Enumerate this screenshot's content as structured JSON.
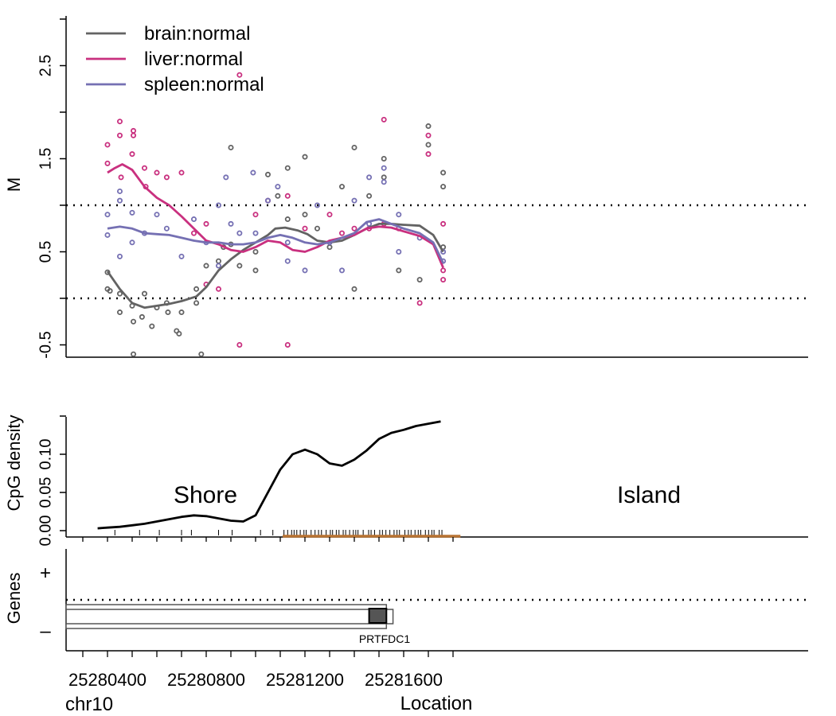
{
  "chart_data": [
    {
      "type": "scatter",
      "panel": "methylation",
      "ylabel": "M",
      "ylim": [
        -0.55,
        3.1
      ],
      "xlim": [
        25280300,
        25281830
      ],
      "yticks": [
        "-0.5",
        "0.5",
        "1.5",
        "2.5"
      ],
      "reference_lines": [
        1.0,
        0.0
      ],
      "legend_position": "top-left",
      "legend": [
        "brain:normal",
        "liver:normal",
        "spleen:normal"
      ],
      "colors": {
        "brain": "#636363",
        "liver": "#c9307f",
        "spleen": "#7570b3"
      },
      "series": [
        {
          "name": "brain:normal",
          "smooth": [
            [
              25280400,
              0.29
            ],
            [
              25280450,
              0.1
            ],
            [
              25280500,
              -0.05
            ],
            [
              25280550,
              -0.1
            ],
            [
              25280600,
              -0.08
            ],
            [
              25280650,
              -0.06
            ],
            [
              25280700,
              -0.03
            ],
            [
              25280760,
              0.02
            ],
            [
              25280800,
              0.12
            ],
            [
              25280850,
              0.3
            ],
            [
              25280900,
              0.42
            ],
            [
              25280950,
              0.52
            ],
            [
              25281000,
              0.6
            ],
            [
              25281050,
              0.68
            ],
            [
              25281080,
              0.75
            ],
            [
              25281120,
              0.76
            ],
            [
              25281170,
              0.73
            ],
            [
              25281210,
              0.69
            ],
            [
              25281250,
              0.62
            ],
            [
              25281300,
              0.6
            ],
            [
              25281350,
              0.62
            ],
            [
              25281400,
              0.68
            ],
            [
              25281450,
              0.75
            ],
            [
              25281500,
              0.8
            ],
            [
              25281550,
              0.8
            ],
            [
              25281600,
              0.79
            ],
            [
              25281665,
              0.78
            ],
            [
              25281720,
              0.68
            ],
            [
              25281760,
              0.5
            ]
          ],
          "points": [
            [
              25280400,
              0.28
            ],
            [
              25280400,
              0.1
            ],
            [
              25280410,
              0.08
            ],
            [
              25280450,
              -0.15
            ],
            [
              25280450,
              0.05
            ],
            [
              25280500,
              -0.08
            ],
            [
              25280505,
              -0.25
            ],
            [
              25280505,
              -0.6
            ],
            [
              25280540,
              -0.2
            ],
            [
              25280550,
              0.05
            ],
            [
              25280580,
              -0.3
            ],
            [
              25280600,
              -0.1
            ],
            [
              25280640,
              -0.05
            ],
            [
              25280645,
              -0.15
            ],
            [
              25280680,
              -0.35
            ],
            [
              25280690,
              -0.38
            ],
            [
              25280700,
              -0.15
            ],
            [
              25280760,
              0.1
            ],
            [
              25280760,
              -0.05
            ],
            [
              25280780,
              -0.6
            ],
            [
              25280800,
              0.35
            ],
            [
              25280850,
              0.4
            ],
            [
              25280870,
              0.55
            ],
            [
              25280900,
              1.62
            ],
            [
              25280900,
              0.58
            ],
            [
              25280935,
              0.35
            ],
            [
              25281000,
              0.5
            ],
            [
              25281000,
              0.3
            ],
            [
              25281050,
              1.33
            ],
            [
              25281090,
              1.1
            ],
            [
              25281130,
              1.4
            ],
            [
              25281130,
              0.85
            ],
            [
              25281200,
              1.52
            ],
            [
              25281200,
              0.9
            ],
            [
              25281250,
              0.75
            ],
            [
              25281300,
              0.55
            ],
            [
              25281350,
              1.2
            ],
            [
              25281400,
              0.1
            ],
            [
              25281400,
              1.62
            ],
            [
              25281460,
              1.1
            ],
            [
              25281520,
              1.5
            ],
            [
              25281520,
              1.3
            ],
            [
              25281580,
              0.3
            ],
            [
              25281665,
              0.2
            ],
            [
              25281700,
              1.85
            ],
            [
              25281700,
              1.65
            ],
            [
              25281760,
              1.35
            ],
            [
              25281760,
              1.2
            ],
            [
              25281760,
              0.55
            ]
          ]
        },
        {
          "name": "liver:normal",
          "smooth": [
            [
              25280400,
              1.35
            ],
            [
              25280430,
              1.4
            ],
            [
              25280460,
              1.44
            ],
            [
              25280500,
              1.38
            ],
            [
              25280550,
              1.2
            ],
            [
              25280600,
              1.08
            ],
            [
              25280650,
              1.0
            ],
            [
              25280700,
              0.88
            ],
            [
              25280750,
              0.75
            ],
            [
              25280800,
              0.62
            ],
            [
              25280850,
              0.58
            ],
            [
              25280900,
              0.52
            ],
            [
              25280950,
              0.5
            ],
            [
              25281000,
              0.55
            ],
            [
              25281050,
              0.62
            ],
            [
              25281100,
              0.6
            ],
            [
              25281150,
              0.52
            ],
            [
              25281200,
              0.5
            ],
            [
              25281250,
              0.55
            ],
            [
              25281300,
              0.62
            ],
            [
              25281350,
              0.65
            ],
            [
              25281400,
              0.68
            ],
            [
              25281450,
              0.75
            ],
            [
              25281500,
              0.77
            ],
            [
              25281550,
              0.76
            ],
            [
              25281600,
              0.72
            ],
            [
              25281665,
              0.67
            ],
            [
              25281720,
              0.58
            ],
            [
              25281760,
              0.33
            ]
          ],
          "points": [
            [
              25280400,
              1.65
            ],
            [
              25280400,
              1.45
            ],
            [
              25280450,
              1.9
            ],
            [
              25280450,
              1.75
            ],
            [
              25280455,
              1.3
            ],
            [
              25280500,
              1.55
            ],
            [
              25280505,
              1.75
            ],
            [
              25280505,
              1.8
            ],
            [
              25280550,
              1.4
            ],
            [
              25280555,
              1.2
            ],
            [
              25280600,
              1.35
            ],
            [
              25280640,
              1.3
            ],
            [
              25280700,
              1.35
            ],
            [
              25280750,
              0.7
            ],
            [
              25280800,
              0.15
            ],
            [
              25280800,
              0.8
            ],
            [
              25280850,
              0.1
            ],
            [
              25280935,
              2.4
            ],
            [
              25280935,
              -0.5
            ],
            [
              25281000,
              0.9
            ],
            [
              25281050,
              1.05
            ],
            [
              25281130,
              1.1
            ],
            [
              25281130,
              -0.5
            ],
            [
              25281200,
              0.75
            ],
            [
              25281300,
              0.9
            ],
            [
              25281350,
              0.7
            ],
            [
              25281400,
              0.75
            ],
            [
              25281460,
              0.75
            ],
            [
              25281520,
              1.92
            ],
            [
              25281520,
              0.8
            ],
            [
              25281580,
              0.75
            ],
            [
              25281665,
              -0.05
            ],
            [
              25281700,
              1.75
            ],
            [
              25281700,
              1.55
            ],
            [
              25281760,
              0.8
            ],
            [
              25281760,
              0.3
            ],
            [
              25281760,
              0.2
            ]
          ]
        },
        {
          "name": "spleen:normal",
          "smooth": [
            [
              25280400,
              0.75
            ],
            [
              25280450,
              0.77
            ],
            [
              25280500,
              0.75
            ],
            [
              25280550,
              0.7
            ],
            [
              25280600,
              0.69
            ],
            [
              25280650,
              0.68
            ],
            [
              25280700,
              0.65
            ],
            [
              25280750,
              0.62
            ],
            [
              25280800,
              0.6
            ],
            [
              25280850,
              0.6
            ],
            [
              25280900,
              0.58
            ],
            [
              25280950,
              0.58
            ],
            [
              25281000,
              0.6
            ],
            [
              25281050,
              0.65
            ],
            [
              25281100,
              0.68
            ],
            [
              25281150,
              0.65
            ],
            [
              25281200,
              0.6
            ],
            [
              25281250,
              0.58
            ],
            [
              25281300,
              0.6
            ],
            [
              25281350,
              0.65
            ],
            [
              25281400,
              0.7
            ],
            [
              25281450,
              0.82
            ],
            [
              25281500,
              0.85
            ],
            [
              25281550,
              0.8
            ],
            [
              25281600,
              0.75
            ],
            [
              25281665,
              0.7
            ],
            [
              25281720,
              0.6
            ],
            [
              25281760,
              0.38
            ]
          ],
          "points": [
            [
              25280400,
              0.9
            ],
            [
              25280400,
              0.68
            ],
            [
              25280450,
              1.15
            ],
            [
              25280450,
              1.05
            ],
            [
              25280450,
              0.45
            ],
            [
              25280500,
              0.92
            ],
            [
              25280500,
              0.6
            ],
            [
              25280550,
              0.7
            ],
            [
              25280600,
              0.9
            ],
            [
              25280640,
              0.75
            ],
            [
              25280700,
              0.45
            ],
            [
              25280750,
              0.85
            ],
            [
              25280800,
              0.6
            ],
            [
              25280850,
              1.0
            ],
            [
              25280850,
              0.35
            ],
            [
              25280880,
              1.3
            ],
            [
              25280900,
              0.8
            ],
            [
              25280935,
              0.7
            ],
            [
              25280990,
              1.35
            ],
            [
              25281000,
              0.7
            ],
            [
              25281050,
              1.05
            ],
            [
              25281090,
              1.2
            ],
            [
              25281130,
              0.4
            ],
            [
              25281130,
              0.6
            ],
            [
              25281200,
              0.3
            ],
            [
              25281250,
              1.0
            ],
            [
              25281300,
              0.6
            ],
            [
              25281350,
              0.3
            ],
            [
              25281400,
              1.05
            ],
            [
              25281460,
              1.3
            ],
            [
              25281460,
              0.8
            ],
            [
              25281520,
              1.25
            ],
            [
              25281520,
              1.4
            ],
            [
              25281580,
              0.5
            ],
            [
              25281580,
              0.9
            ],
            [
              25281665,
              0.65
            ],
            [
              25281760,
              0.5
            ],
            [
              25281760,
              0.4
            ]
          ]
        }
      ]
    },
    {
      "type": "line",
      "panel": "cpg-density",
      "ylabel": "CpG density",
      "ylim": [
        -0.01,
        0.18
      ],
      "yticks": [
        "0.00",
        "0.05",
        "0.10"
      ],
      "annotations": [
        "Shore",
        "Island"
      ],
      "colors": {
        "line": "#000000",
        "island_bar": "#b87333"
      },
      "island_range": [
        25281110,
        25281830
      ],
      "x": [
        25280360,
        25280400,
        25280450,
        25280500,
        25280550,
        25280600,
        25280650,
        25280700,
        25280750,
        25280800,
        25280850,
        25280900,
        25280950,
        25281000,
        25281050,
        25281100,
        25281150,
        25281200,
        25281250,
        25281300,
        25281350,
        25281400,
        25281450,
        25281500,
        25281550,
        25281600,
        25281650,
        25281700,
        25281750
      ],
      "values": [
        0.003,
        0.004,
        0.005,
        0.007,
        0.009,
        0.012,
        0.015,
        0.018,
        0.02,
        0.019,
        0.016,
        0.013,
        0.012,
        0.02,
        0.05,
        0.08,
        0.1,
        0.106,
        0.1,
        0.088,
        0.085,
        0.093,
        0.105,
        0.12,
        0.128,
        0.132,
        0.137,
        0.14,
        0.143
      ]
    },
    {
      "type": "table",
      "panel": "genes",
      "ylabel": "Genes",
      "strand_labels": [
        "+",
        "–"
      ],
      "gene": {
        "name": "PRTFDC1",
        "start": 25280300,
        "end": 25281530,
        "exon_start": 25281460,
        "exon_end": 25281530
      }
    }
  ],
  "axis": {
    "xticks": [
      "25280400",
      "25280800",
      "25281200",
      "25281600"
    ],
    "chromosome": "chr10",
    "xlabel": "Location"
  }
}
